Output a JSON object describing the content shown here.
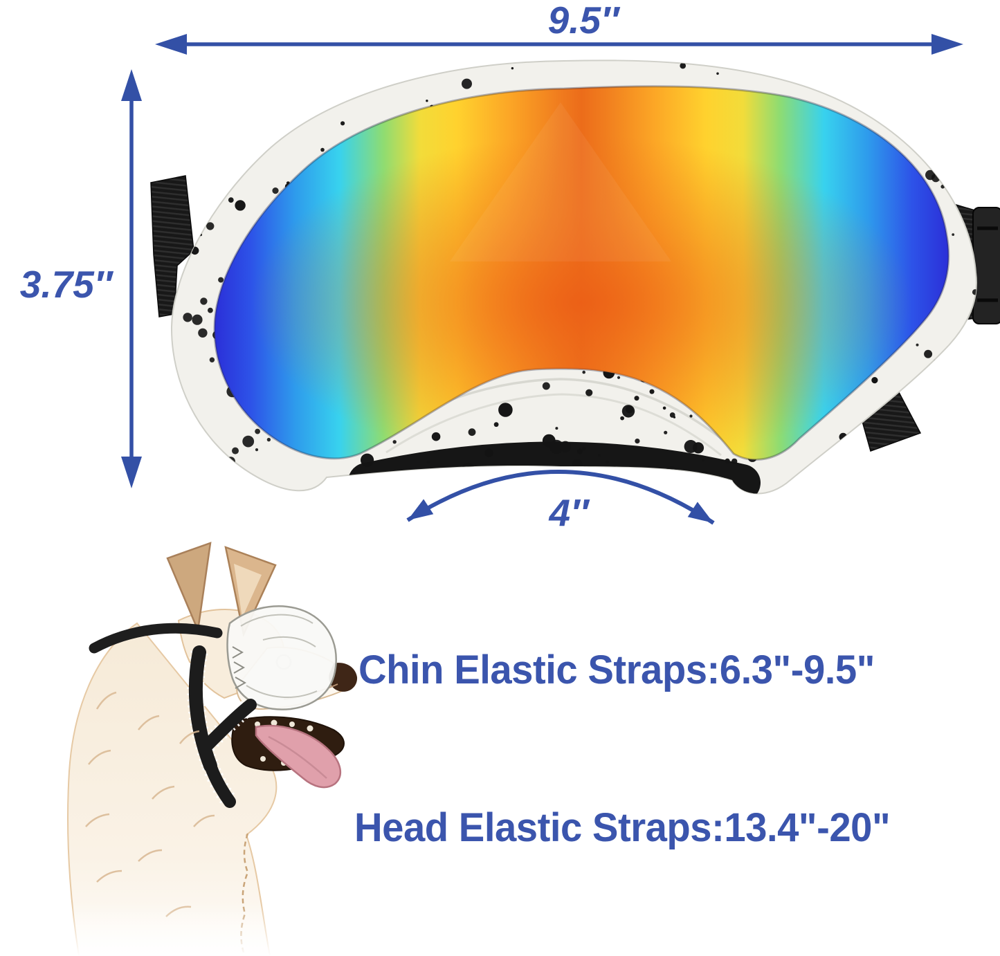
{
  "diagram": {
    "background": "#ffffff",
    "accent_color": "#3b55ad",
    "arrow_color": "#3350a6",
    "dimensions": {
      "width_label": "9.5″",
      "height_label": "3.75″",
      "bridge_label": "4″"
    },
    "specs": {
      "chin_strap_label": "Chin Elastic Straps:6.3\"-9.5\"",
      "head_strap_label": "Head Elastic Straps:13.4\"-20\""
    },
    "icons": {
      "width_arrow": "horizontal-double-arrow",
      "height_arrow": "vertical-double-arrow",
      "bridge_arrow": "curved-double-arrow"
    },
    "colors": {
      "frame_white": "#f2f1ec",
      "speckle_black": "#141414",
      "strap_black": "#1a1a1a",
      "foam_black": "#161616",
      "lens_gradient": [
        "#2b2fd8",
        "#2d53e8",
        "#2e9bec",
        "#38d2ee",
        "#8edc72",
        "#ffd22e",
        "#fca726",
        "#ec6c1a"
      ],
      "dog_fur_cream": "#f6ead7",
      "dog_fur_tan": "#d9b893",
      "dog_tongue_pink": "#e0a0ab",
      "dog_nose_brown": "#3f2617"
    }
  }
}
